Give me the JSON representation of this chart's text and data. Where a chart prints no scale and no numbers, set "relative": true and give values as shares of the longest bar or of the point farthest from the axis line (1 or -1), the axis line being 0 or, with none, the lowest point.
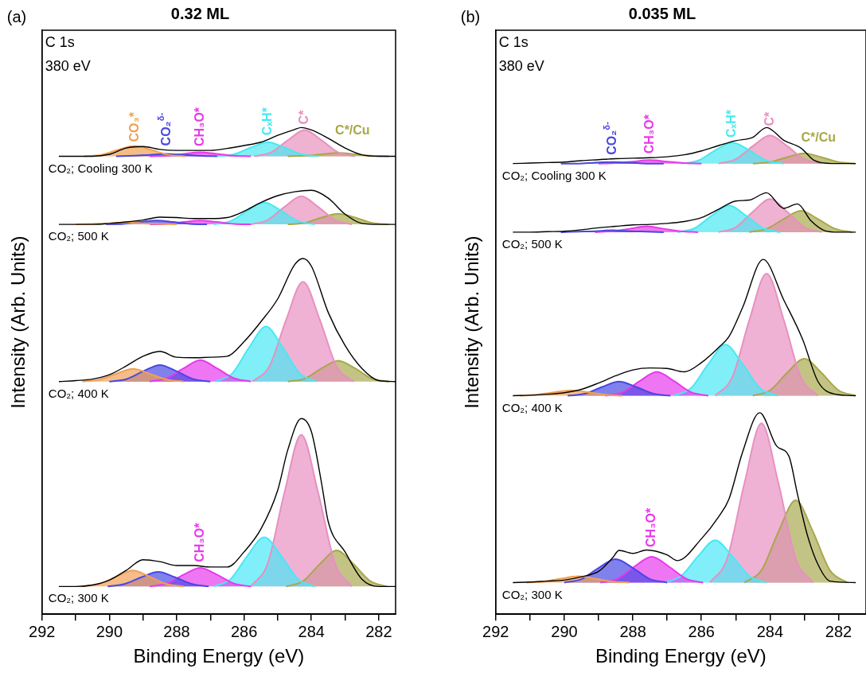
{
  "chart_data": [
    {
      "type": "line",
      "title": "0.32 ML",
      "xlabel": "Binding Energy (eV)",
      "ylabel": "Intensity (Arb. Units)",
      "relative": true,
      "xlim": [
        292,
        281.5
      ],
      "xticks": [
        292,
        {
          "value": 291,
          "label": null
        },
        290,
        {
          "value": 289,
          "label": null
        },
        288,
        {
          "value": 287,
          "label": null
        },
        286,
        {
          "value": 285,
          "label": null
        },
        284,
        {
          "value": 283,
          "label": null
        },
        282
      ],
      "annotations": [
        "(a)",
        "C 1s",
        "380 eV",
        "CO₂; Cooling 300 K",
        "CO₂; 500 K",
        "CO₂; 400 K",
        "CO₂; 300 K"
      ],
      "series": [
        {
          "type": "line",
          "color": "#000000",
          "x": [
            291.5,
            291,
            290.5,
            290,
            289.5,
            289,
            288.5,
            288,
            287.5,
            287,
            286.5,
            286,
            285.5,
            285,
            284.5,
            284.3,
            284,
            283.5,
            283,
            282.5,
            282,
            281.5
          ],
          "values": [
            0.941,
            0.941,
            0.941,
            0.945,
            0.958,
            0.961,
            0.955,
            0.953,
            0.953,
            0.953,
            0.957,
            0.963,
            0.97,
            0.984,
            0.996,
            1,
            0.995,
            0.978,
            0.958,
            0.944,
            0.941,
            0.941
          ]
        },
        {
          "type": "area",
          "name": "CO₃*",
          "color": "#f0a050",
          "x": [
            290.75,
            290.25,
            289.75,
            289.25,
            288.75,
            288.25,
            287.75
          ],
          "values": [
            0.941,
            0.944,
            0.954,
            0.962,
            0.954,
            0.944,
            0.941
          ]
        },
        {
          "type": "area",
          "name": "CO₂$^{δ-}$",
          "color": "#4848e0",
          "x": [
            289.8,
            289.3,
            288.8,
            288.3,
            287.8,
            287.3,
            286.8
          ],
          "values": [
            0.941,
            0.942,
            0.944,
            0.946,
            0.944,
            0.942,
            0.941
          ]
        },
        {
          "type": "area",
          "name": "CH₃O*",
          "color": "#e838e8",
          "x": [
            288.8,
            288.3,
            287.8,
            287.3,
            286.8,
            286.3,
            285.8
          ],
          "values": [
            0.941,
            0.942,
            0.946,
            0.949,
            0.946,
            0.942,
            0.941
          ]
        },
        {
          "type": "area",
          "name": "CₓH*",
          "color": "#48e8f0",
          "x": [
            286.8,
            286.3,
            285.8,
            285.3,
            284.8,
            284.3,
            283.8
          ],
          "values": [
            0.941,
            0.945,
            0.959,
            0.97,
            0.959,
            0.945,
            0.941
          ]
        },
        {
          "type": "area",
          "name": "C*",
          "color": "#e890bc",
          "x": [
            285.7,
            285.2,
            284.7,
            284.2,
            283.7,
            283.2,
            282.7
          ],
          "values": [
            0.941,
            0.949,
            0.974,
            0.995,
            0.974,
            0.949,
            0.941
          ]
        },
        {
          "type": "area",
          "name": "C*/Cu",
          "color": "#a8a848",
          "x": [
            284.7,
            284.2,
            283.7,
            283.2,
            282.7,
            282.2,
            281.7
          ],
          "values": [
            0.941,
            0.942,
            0.945,
            0.948,
            0.945,
            0.942,
            0.941
          ]
        },
        {
          "type": "line",
          "color": "#000000",
          "x": [
            291.5,
            291,
            290.5,
            290,
            289.5,
            289,
            288.5,
            288,
            287.5,
            287,
            286.5,
            286,
            285.5,
            285,
            284.5,
            284,
            283.5,
            283,
            282.5,
            282,
            281.5
          ],
          "values": [
            0.801,
            0.801,
            0.801,
            0.803,
            0.806,
            0.81,
            0.816,
            0.815,
            0.813,
            0.813,
            0.815,
            0.828,
            0.846,
            0.86,
            0.868,
            0.871,
            0.855,
            0.822,
            0.803,
            0.801,
            0.801
          ]
        },
        {
          "type": "area",
          "color": "#f0a052",
          "x": [
            291,
            290.5,
            290,
            289.5,
            289,
            288.5,
            288
          ],
          "values": [
            0.801,
            0.802,
            0.803,
            0.805,
            0.803,
            0.802,
            0.801
          ]
        },
        {
          "type": "area",
          "color": "#4848e2",
          "x": [
            290.1,
            289.6,
            289.1,
            288.6,
            288.1,
            287.6,
            287.1
          ],
          "values": [
            0.801,
            0.802,
            0.806,
            0.809,
            0.806,
            0.802,
            0.801
          ]
        },
        {
          "type": "area",
          "color": "#e838ea",
          "x": [
            288.8,
            288.3,
            287.8,
            287.3,
            286.8,
            286.3,
            285.8
          ],
          "values": [
            0.801,
            0.802,
            0.806,
            0.809,
            0.806,
            0.802,
            0.801
          ]
        },
        {
          "type": "area",
          "color": "#48e8f2",
          "x": [
            286.9,
            286.4,
            285.9,
            285.4,
            284.9,
            284.4,
            283.9
          ],
          "values": [
            0.801,
            0.808,
            0.829,
            0.846,
            0.829,
            0.808,
            0.801
          ]
        },
        {
          "type": "area",
          "color": "#e890be",
          "x": [
            285.8,
            285.3,
            284.8,
            284.3,
            283.8,
            283.3,
            282.8
          ],
          "values": [
            0.801,
            0.81,
            0.837,
            0.859,
            0.837,
            0.81,
            0.801
          ]
        },
        {
          "type": "area",
          "color": "#a8a84a",
          "x": [
            284.7,
            284.2,
            283.7,
            283.2,
            282.7,
            282.2,
            281.7
          ],
          "values": [
            0.801,
            0.804,
            0.815,
            0.823,
            0.815,
            0.804,
            0.801
          ]
        },
        {
          "type": "line",
          "color": "#000000",
          "x": [
            291.5,
            291,
            290.5,
            290,
            289.5,
            289,
            288.5,
            288,
            287.5,
            287,
            286.5,
            286,
            285.5,
            285,
            284.5,
            284.25,
            284,
            283.5,
            283,
            282.5,
            282,
            281.5
          ],
          "values": [
            0.478,
            0.48,
            0.483,
            0.492,
            0.51,
            0.53,
            0.54,
            0.528,
            0.527,
            0.528,
            0.53,
            0.56,
            0.601,
            0.648,
            0.718,
            0.731,
            0.715,
            0.62,
            0.552,
            0.505,
            0.48,
            0.478
          ]
        },
        {
          "type": "area",
          "color": "#f0a054",
          "x": [
            290.8,
            290.3,
            289.8,
            289.3,
            288.8,
            288.3,
            287.8
          ],
          "values": [
            0.478,
            0.482,
            0.494,
            0.504,
            0.494,
            0.482,
            0.478
          ]
        },
        {
          "type": "area",
          "color": "#4848e4",
          "x": [
            290,
            289.5,
            289,
            288.5,
            288,
            287.5,
            287
          ],
          "values": [
            0.478,
            0.483,
            0.499,
            0.512,
            0.499,
            0.483,
            0.478
          ]
        },
        {
          "type": "area",
          "color": "#e838ec",
          "x": [
            288.8,
            288.3,
            287.8,
            287.3,
            286.8,
            286.3,
            285.8
          ],
          "values": [
            0.478,
            0.485,
            0.505,
            0.522,
            0.505,
            0.485,
            0.478
          ]
        },
        {
          "type": "area",
          "color": "#48e8f4",
          "x": [
            286.85,
            286.35,
            285.85,
            285.35,
            284.85,
            284.35,
            283.85
          ],
          "values": [
            0.478,
            0.495,
            0.548,
            0.591,
            0.548,
            0.495,
            0.478
          ]
        },
        {
          "type": "area",
          "color": "#e890c0",
          "x": [
            285.75,
            285.25,
            284.75,
            284.25,
            283.75,
            283.25,
            282.75
          ],
          "values": [
            0.478,
            0.509,
            0.605,
            0.683,
            0.605,
            0.509,
            0.478
          ]
        },
        {
          "type": "area",
          "color": "#a8a84c",
          "x": [
            284.7,
            284.2,
            283.7,
            283.2,
            282.7,
            282.2,
            281.7
          ],
          "values": [
            0.478,
            0.484,
            0.505,
            0.521,
            0.505,
            0.484,
            0.478
          ]
        },
        {
          "type": "line",
          "color": "#000000",
          "x": [
            291.5,
            291,
            290.5,
            290,
            289.5,
            289,
            288.5,
            288,
            287.5,
            287,
            286.5,
            286,
            285.5,
            285,
            284.7,
            284.3,
            284,
            283.7,
            283.5,
            283,
            282.5,
            282,
            281.5
          ],
          "values": [
            0.057,
            0.057,
            0.06,
            0.07,
            0.09,
            0.112,
            0.108,
            0.1,
            0.1,
            0.097,
            0.097,
            0.128,
            0.175,
            0.255,
            0.338,
            0.402,
            0.375,
            0.27,
            0.19,
            0.128,
            0.072,
            0.057,
            0.057
          ]
        },
        {
          "type": "area",
          "color": "#f0a056",
          "x": [
            290.8,
            290.3,
            289.8,
            289.3,
            288.8,
            288.3,
            287.8
          ],
          "values": [
            0.057,
            0.062,
            0.077,
            0.09,
            0.077,
            0.062,
            0.057
          ]
        },
        {
          "type": "area",
          "color": "#4848e6",
          "x": [
            290.05,
            289.55,
            289.05,
            288.55,
            288.05,
            287.55,
            287.05
          ],
          "values": [
            0.057,
            0.062,
            0.076,
            0.087,
            0.076,
            0.062,
            0.057
          ]
        },
        {
          "type": "area",
          "name": "CH₃O*",
          "color": "#e838ee",
          "x": [
            288.8,
            288.3,
            287.8,
            287.3,
            286.8,
            286.3,
            285.8
          ],
          "values": [
            0.057,
            0.063,
            0.081,
            0.095,
            0.081,
            0.063,
            0.057
          ]
        },
        {
          "type": "area",
          "color": "#48e8f6",
          "x": [
            286.9,
            286.4,
            285.9,
            285.4,
            284.9,
            284.4,
            283.9
          ],
          "values": [
            0.057,
            0.072,
            0.12,
            0.158,
            0.12,
            0.072,
            0.057
          ]
        },
        {
          "type": "area",
          "color": "#e890c2",
          "x": [
            285.8,
            285.3,
            284.8,
            284.3,
            283.8,
            283.3,
            282.8
          ],
          "values": [
            0.057,
            0.104,
            0.25,
            0.369,
            0.25,
            0.104,
            0.057
          ]
        },
        {
          "type": "area",
          "color": "#a8a84e",
          "x": [
            284.75,
            284.25,
            283.75,
            283.25,
            282.75,
            282.25,
            281.75
          ],
          "values": [
            0.057,
            0.068,
            0.103,
            0.131,
            0.103,
            0.068,
            0.057
          ]
        }
      ]
    },
    {
      "type": "line",
      "title": "0.035 ML",
      "xlabel": "Binding Energy (eV)",
      "ylabel": "Intensity (Arb. Units)",
      "relative": true,
      "xlim": [
        292,
        281.2
      ],
      "xticks": [
        292,
        {
          "value": 291,
          "label": null
        },
        290,
        {
          "value": 289,
          "label": null
        },
        288,
        {
          "value": 287,
          "label": null
        },
        286,
        {
          "value": 285,
          "label": null
        },
        284,
        {
          "value": 283,
          "label": null
        },
        282
      ],
      "annotations": [
        "(b)",
        "C 1s",
        "380 eV",
        "CO₂; Cooling 300 K",
        "CO₂; 500 K",
        "CO₂; 400 K",
        "CO₂; 300 K"
      ],
      "series": [
        {
          "type": "line",
          "color": "#000000",
          "x": [
            291.5,
            291,
            290.5,
            290,
            289.5,
            289,
            288.5,
            288,
            287.5,
            287,
            286.5,
            286,
            285.5,
            285,
            284.5,
            284.1,
            283.6,
            283.1,
            282.7,
            282.2,
            281.5
          ],
          "values": [
            0.926,
            0.927,
            0.928,
            0.929,
            0.932,
            0.934,
            0.936,
            0.937,
            0.938,
            0.94,
            0.944,
            0.952,
            0.963,
            0.973,
            0.98,
            1,
            0.974,
            0.958,
            0.932,
            0.926,
            0.926
          ]
        },
        {
          "type": "area",
          "name": "CO₂$^{δ-}$",
          "color": "#4848e0",
          "x": [
            290.1,
            289.6,
            289.1,
            288.6,
            288.1,
            287.6,
            287.1
          ],
          "values": [
            0.926,
            0.926,
            0.928,
            0.929,
            0.928,
            0.926,
            0.926
          ]
        },
        {
          "type": "area",
          "name": "CH₃O*",
          "color": "#e838e8",
          "x": [
            289,
            288.5,
            288,
            287.5,
            287,
            286.5,
            286
          ],
          "values": [
            0.926,
            0.927,
            0.93,
            0.933,
            0.93,
            0.927,
            0.926
          ]
        },
        {
          "type": "area",
          "name": "CₓH*",
          "color": "#48e8f0",
          "x": [
            286.6,
            286.1,
            285.6,
            285.1,
            284.6,
            284.1,
            283.6
          ],
          "values": [
            0.926,
            0.932,
            0.953,
            0.969,
            0.953,
            0.932,
            0.926
          ]
        },
        {
          "type": "area",
          "name": "C*",
          "color": "#e890bc",
          "x": [
            285.5,
            285,
            284.5,
            284,
            283.5,
            283,
            282.5
          ],
          "values": [
            0.926,
            0.935,
            0.962,
            0.984,
            0.962,
            0.935,
            0.926
          ]
        },
        {
          "type": "area",
          "name": "C*/Cu",
          "color": "#a8a848",
          "x": [
            284.5,
            284,
            283.5,
            283,
            282.5,
            282,
            281.5
          ],
          "values": [
            0.926,
            0.929,
            0.939,
            0.947,
            0.939,
            0.929,
            0.926
          ]
        },
        {
          "type": "line",
          "color": "#000000",
          "x": [
            291.5,
            291,
            290.5,
            290,
            289.5,
            289,
            288.5,
            288,
            287.5,
            287,
            286.5,
            286,
            285.5,
            285,
            284.6,
            284.1,
            283.6,
            283.2,
            282.8,
            282.4,
            282,
            281.5
          ],
          "values": [
            0.785,
            0.785,
            0.786,
            0.787,
            0.79,
            0.794,
            0.797,
            0.8,
            0.801,
            0.803,
            0.807,
            0.815,
            0.832,
            0.849,
            0.851,
            0.866,
            0.834,
            0.843,
            0.808,
            0.788,
            0.785,
            0.785
          ]
        },
        {
          "type": "area",
          "color": "#4848e2",
          "x": [
            290.1,
            289.6,
            289.1,
            288.6,
            288.1,
            287.6,
            287.1
          ],
          "values": [
            0.785,
            0.786,
            0.787,
            0.789,
            0.787,
            0.786,
            0.785
          ]
        },
        {
          "type": "area",
          "color": "#e838ea",
          "x": [
            289.1,
            288.6,
            288.1,
            287.6,
            287.1,
            286.6,
            286.1
          ],
          "values": [
            0.785,
            0.787,
            0.792,
            0.797,
            0.792,
            0.787,
            0.785
          ]
        },
        {
          "type": "area",
          "color": "#48e8f2",
          "x": [
            286.7,
            286.2,
            285.7,
            285.2,
            284.7,
            284.2,
            283.7
          ],
          "values": [
            0.785,
            0.793,
            0.819,
            0.84,
            0.819,
            0.793,
            0.785
          ]
        },
        {
          "type": "area",
          "color": "#e890be",
          "x": [
            285.5,
            285,
            284.5,
            284,
            283.5,
            283,
            282.5
          ],
          "values": [
            0.785,
            0.795,
            0.827,
            0.853,
            0.827,
            0.795,
            0.785
          ]
        },
        {
          "type": "area",
          "color": "#a8a84a",
          "x": [
            284.6,
            284.1,
            283.6,
            283.1,
            282.6,
            282.1,
            281.6
          ],
          "values": [
            0.785,
            0.792,
            0.812,
            0.829,
            0.812,
            0.792,
            0.785
          ]
        },
        {
          "type": "line",
          "color": "#000000",
          "x": [
            291.5,
            291,
            290.5,
            290,
            289.5,
            289,
            288.5,
            288,
            287.5,
            287,
            286.5,
            286,
            285.5,
            285.2,
            284.8,
            284.2,
            283.6,
            283.05,
            282.6,
            282.1,
            281.5
          ],
          "values": [
            0.449,
            0.45,
            0.452,
            0.455,
            0.462,
            0.475,
            0.49,
            0.502,
            0.506,
            0.505,
            0.498,
            0.517,
            0.548,
            0.57,
            0.63,
            0.729,
            0.646,
            0.565,
            0.478,
            0.452,
            0.449
          ]
        },
        {
          "type": "area",
          "color": "#f0a054",
          "x": [
            291.3,
            290.8,
            290.3,
            289.8,
            289.3,
            288.8,
            288.3
          ],
          "values": [
            0.449,
            0.451,
            0.456,
            0.46,
            0.456,
            0.451,
            0.449
          ]
        },
        {
          "type": "area",
          "color": "#4848e4",
          "x": [
            289.9,
            289.4,
            288.9,
            288.4,
            287.9,
            287.4,
            286.9
          ],
          "values": [
            0.449,
            0.453,
            0.467,
            0.478,
            0.467,
            0.453,
            0.449
          ]
        },
        {
          "type": "area",
          "color": "#e838ec",
          "x": [
            288.8,
            288.3,
            287.8,
            287.3,
            286.8,
            286.3,
            285.8
          ],
          "values": [
            0.449,
            0.456,
            0.479,
            0.498,
            0.479,
            0.456,
            0.449
          ]
        },
        {
          "type": "area",
          "color": "#48e8f4",
          "x": [
            286.8,
            286.3,
            285.8,
            285.3,
            284.8,
            284.3,
            283.8
          ],
          "values": [
            0.449,
            0.465,
            0.514,
            0.554,
            0.514,
            0.465,
            0.449
          ]
        },
        {
          "type": "area",
          "color": "#e890c0",
          "x": [
            285.6,
            285.1,
            284.6,
            284.1,
            283.6,
            283.1,
            282.6
          ],
          "values": [
            0.449,
            0.487,
            0.605,
            0.7,
            0.605,
            0.487,
            0.449
          ]
        },
        {
          "type": "area",
          "color": "#a8a84c",
          "x": [
            284.5,
            284,
            283.5,
            283,
            282.5,
            282,
            281.5
          ],
          "values": [
            0.449,
            0.46,
            0.496,
            0.525,
            0.496,
            0.46,
            0.449
          ]
        },
        {
          "type": "line",
          "color": "#000000",
          "x": [
            291.5,
            291,
            290.5,
            290,
            289.5,
            289,
            288.6,
            288.4,
            288,
            287.6,
            287,
            286.7,
            286,
            285.5,
            285.2,
            284.8,
            284.3,
            283.8,
            283.45,
            283.2,
            282.9,
            282.6,
            282.25,
            281.5
          ],
          "values": [
            0.065,
            0.066,
            0.068,
            0.07,
            0.077,
            0.088,
            0.115,
            0.131,
            0.125,
            0.132,
            0.122,
            0.11,
            0.155,
            0.2,
            0.236,
            0.333,
            0.414,
            0.345,
            0.325,
            0.247,
            0.16,
            0.102,
            0.068,
            0.065
          ]
        },
        {
          "type": "area",
          "color": "#f0a056",
          "x": [
            291.1,
            290.6,
            290.1,
            289.6,
            289.1,
            288.6,
            288.1
          ],
          "values": [
            0.065,
            0.067,
            0.073,
            0.078,
            0.073,
            0.067,
            0.065
          ]
        },
        {
          "type": "area",
          "color": "#4848e6",
          "x": [
            290,
            289.5,
            289,
            288.5,
            288,
            287.5,
            287
          ],
          "values": [
            0.065,
            0.072,
            0.095,
            0.113,
            0.095,
            0.072,
            0.065
          ]
        },
        {
          "type": "area",
          "name": "CH₃O*",
          "color": "#e838ee",
          "x": [
            288.95,
            288.45,
            287.95,
            287.45,
            286.95,
            286.45,
            285.95
          ],
          "values": [
            0.065,
            0.073,
            0.098,
            0.118,
            0.098,
            0.073,
            0.065
          ]
        },
        {
          "type": "area",
          "color": "#48e8f6",
          "x": [
            287.1,
            286.6,
            286.1,
            285.6,
            285.1,
            284.6,
            284.1
          ],
          "values": [
            0.065,
            0.078,
            0.119,
            0.152,
            0.119,
            0.078,
            0.065
          ]
        },
        {
          "type": "area",
          "color": "#e890c2",
          "x": [
            285.75,
            285.25,
            284.75,
            284.25,
            283.75,
            283.25,
            282.75
          ],
          "values": [
            0.065,
            0.114,
            0.268,
            0.392,
            0.268,
            0.114,
            0.065
          ]
        },
        {
          "type": "area",
          "color": "#a8a84e",
          "x": [
            284.75,
            284.25,
            283.75,
            283.25,
            282.75,
            282.25,
            281.75
          ],
          "values": [
            0.065,
            0.09,
            0.17,
            0.234,
            0.17,
            0.09,
            0.065
          ]
        }
      ]
    }
  ]
}
